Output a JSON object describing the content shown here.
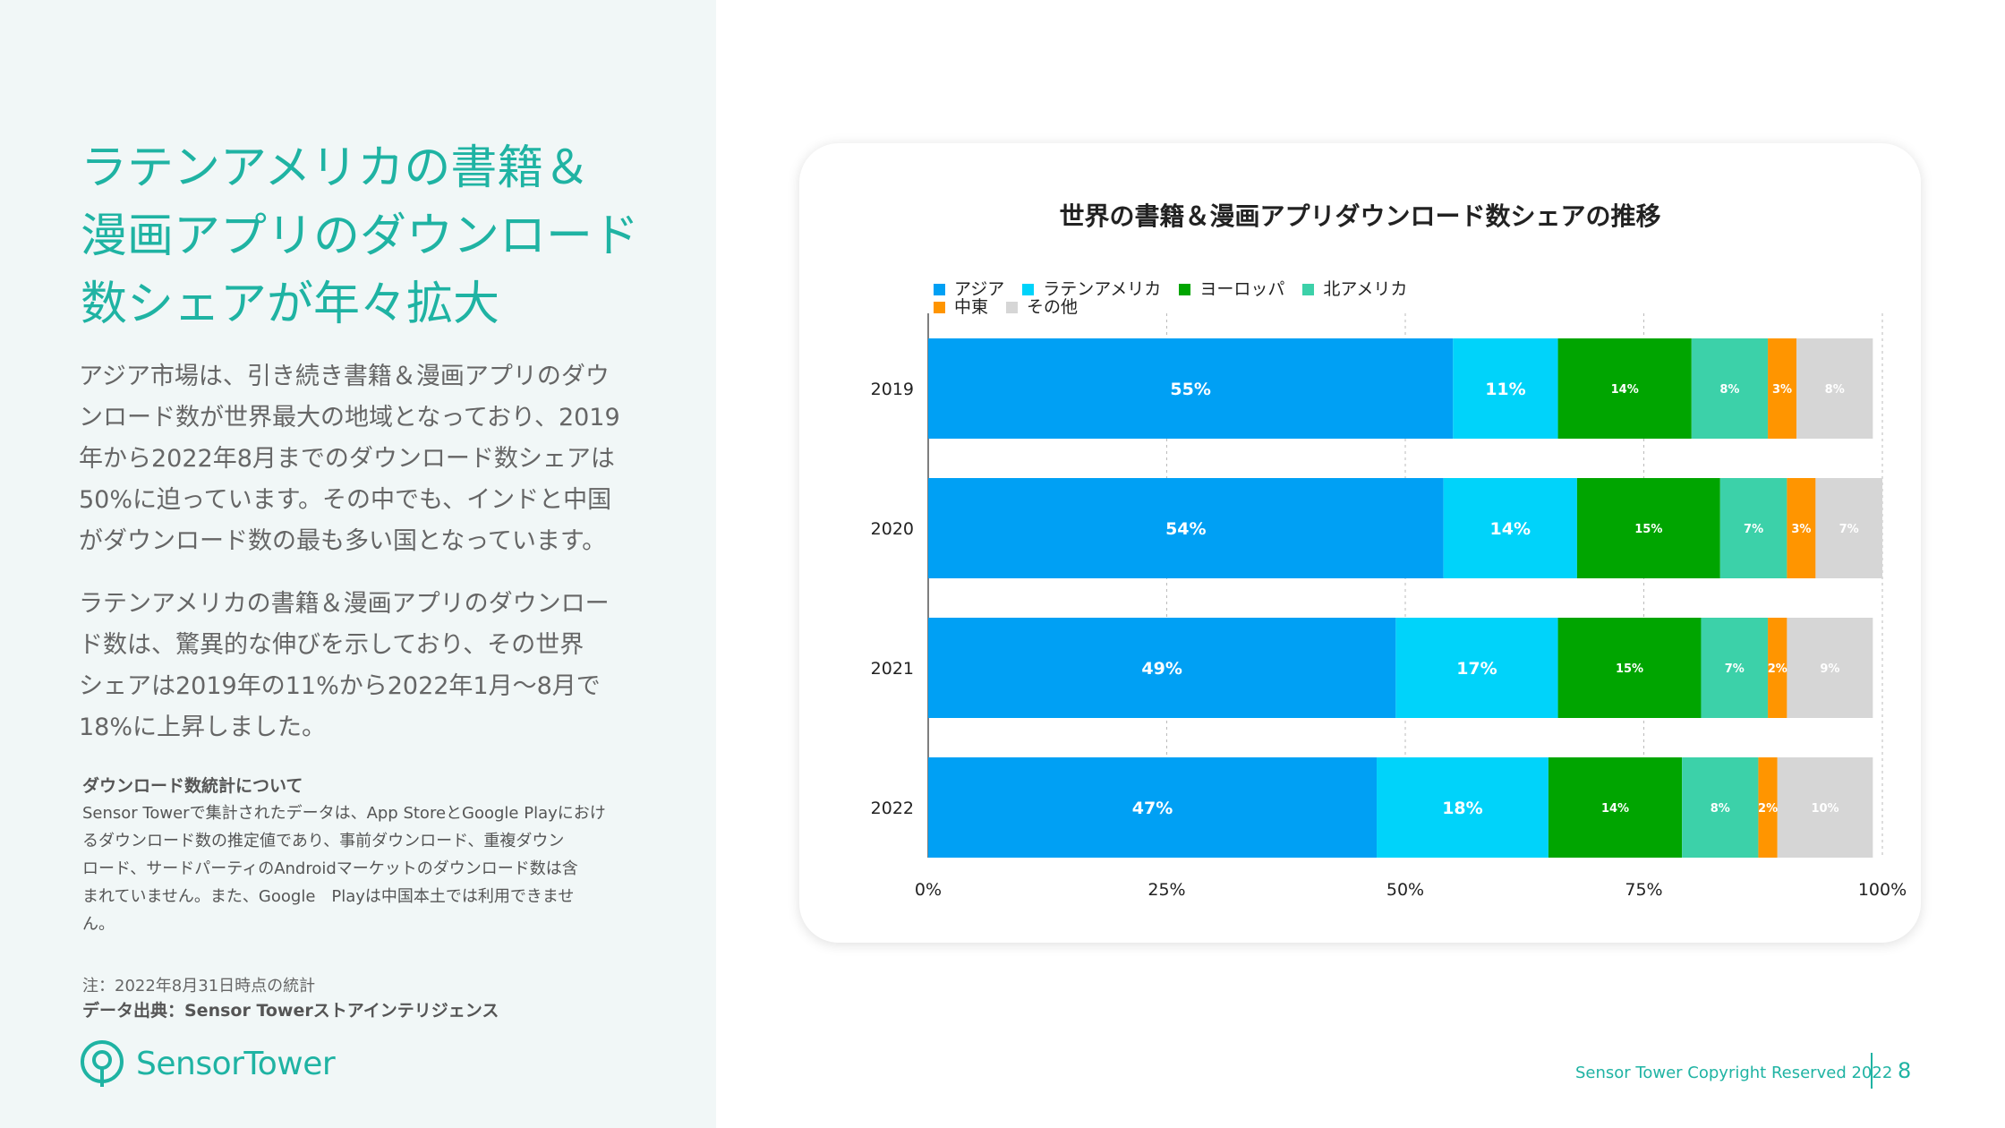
{
  "left": {
    "headline_lines": [
      "ラテンアメリカの書籍＆",
      "漫画アプリのダウンロード",
      "数シェアが年々拡大"
    ],
    "para1_lines": [
      "アジア市場は、引き続き書籍＆漫画アプリのダウ",
      "ンロード数が世界最大の地域となっており、2019",
      "年から2022年8月までのダウンロード数シェアは",
      "50%に迫っています。その中でも、インドと中国",
      "がダウンロード数の最も多い国となっています。"
    ],
    "para2_lines": [
      "ラテンアメリカの書籍＆漫画アプリのダウンロー",
      "ド数は、驚異的な伸びを示しており、その世界",
      "シェアは2019年の11%から2022年1月〜8月で",
      "18%に上昇しました。"
    ],
    "about_title": "ダウンロード数統計について",
    "about_lines": [
      "Sensor Towerで集計されたデータは、App StoreとGoogle Playにおけ",
      "るダウンロード数の推定値であり、事前ダウンロード、重複ダウン",
      "ロード、サードパーティのAndroidマーケットのダウンロード数は含",
      "まれていません。また、Google　Playは中国本土では利用できませ",
      "ん。"
    ],
    "note": "注：2022年8月31日時点の統計",
    "source": "データ出典：Sensor Towerストアインテリジェンス",
    "logo_text": "SensorTower"
  },
  "footer": {
    "copyright": "Sensor Tower Copyright Reserved 2022",
    "page": "8"
  },
  "colors": {
    "accent": "#1fb3a3",
    "panel_bg": "#f1f7f7"
  },
  "chart_data": {
    "type": "bar",
    "orientation": "horizontal",
    "stacked": true,
    "title": "世界の書籍＆漫画アプリダウンロード数シェアの推移",
    "categories": [
      "2019",
      "2020",
      "2021",
      "2022"
    ],
    "xlim": [
      0,
      100
    ],
    "x_ticks": [
      "0%",
      "25%",
      "50%",
      "75%",
      "100%"
    ],
    "grid": "vertical-dashed",
    "legend_position": "top-left",
    "series": [
      {
        "name": "アジア",
        "color": "#00a0f4",
        "values": [
          55,
          54,
          49,
          47
        ],
        "labels": [
          "55%",
          "54%",
          "49%",
          "47%"
        ]
      },
      {
        "name": "ラテンアメリカ",
        "color": "#00d3fa",
        "values": [
          11,
          14,
          17,
          18
        ],
        "labels": [
          "11%",
          "14%",
          "17%",
          "18%"
        ]
      },
      {
        "name": "ヨーロッパ",
        "color": "#00a500",
        "values": [
          14,
          15,
          15,
          14
        ],
        "labels": [
          "14%",
          "15%",
          "15%",
          "14%"
        ]
      },
      {
        "name": "北アメリカ",
        "color": "#3cd1a9",
        "values": [
          8,
          7,
          7,
          8
        ],
        "labels": [
          "8%",
          "7%",
          "7%",
          "8%"
        ]
      },
      {
        "name": "中東",
        "color": "#ff9500",
        "values": [
          3,
          3,
          2,
          2
        ],
        "labels": [
          "3%",
          "3%",
          "2%",
          "2%"
        ]
      },
      {
        "name": "その他",
        "color": "#d6d6d6",
        "values": [
          8,
          7,
          9,
          10
        ],
        "labels": [
          "8%",
          "7%",
          "9%",
          "10%"
        ]
      }
    ]
  }
}
